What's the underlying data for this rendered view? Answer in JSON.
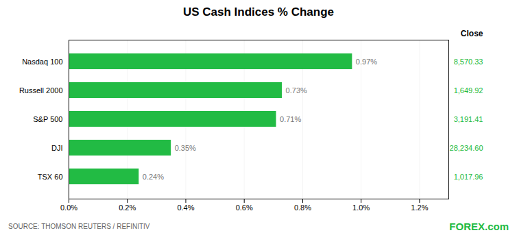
{
  "chart_data": {
    "type": "bar",
    "title": "US Cash Indices % Change",
    "orientation": "horizontal",
    "categories": [
      "TSX 60",
      "DJI",
      "S&P 500",
      "Russell 2000",
      "Nasdaq 100"
    ],
    "values": [
      0.0024,
      0.0035,
      0.0071,
      0.0073,
      0.0097
    ],
    "value_labels": [
      "0.24%",
      "0.35%",
      "0.71%",
      "0.73%",
      "0.97%"
    ],
    "data_labels": true,
    "color": "#22bb44",
    "xlim": [
      0,
      0.013
    ],
    "xticks": [
      {
        "value": 0.0,
        "label": "0.0%"
      },
      {
        "value": 0.002,
        "label": "0.2%"
      },
      {
        "value": 0.004,
        "label": "0.4%"
      },
      {
        "value": 0.006,
        "label": "0.6%"
      },
      {
        "value": 0.008,
        "label": "0.8%"
      },
      {
        "value": 0.01,
        "label": "1.0%"
      },
      {
        "value": 0.012,
        "label": "1.2%"
      }
    ],
    "grid": true,
    "close_label": "Close",
    "close_values": [
      "1,017.96",
      "28,234.60",
      "3,191.41",
      "1,649.92",
      "8,570.33"
    ],
    "annotations": [
      "SOURCE: THOMSON REUTERS / REFINITIV",
      "FOREX.com"
    ]
  }
}
